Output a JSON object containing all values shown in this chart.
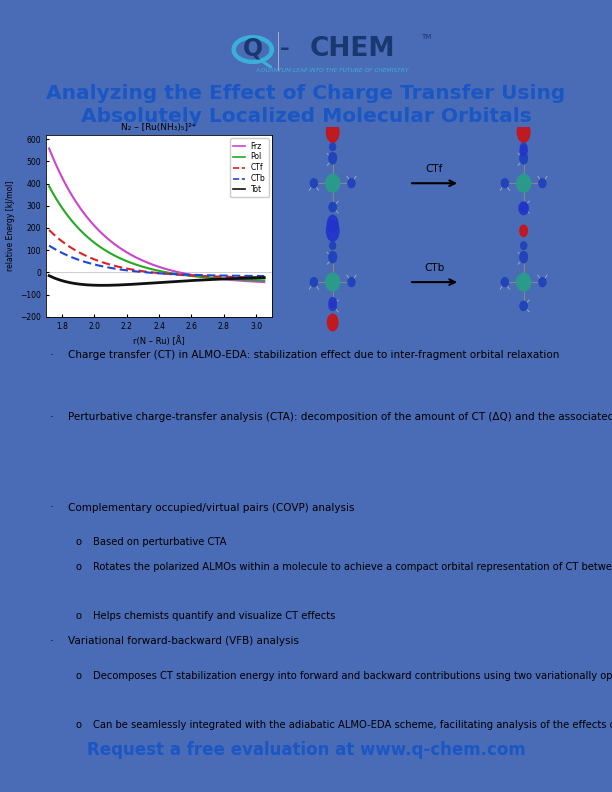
{
  "border_color": "#4a6bb5",
  "bg_color": "#ffffff",
  "title_line1": "Analyzing the Effect of Charge Transfer Using",
  "title_line2": "Absolutely Localized Molecular Orbitals",
  "title_color": "#1a56c4",
  "title_fontsize": 14.5,
  "tagline": "A QUANTUM LEAP INTO THE FUTURE OF CHEMISTRY",
  "plot_title": "N₂ – [Ru(NH₃)₅]²⁺",
  "plot_xlabel": "r(N – Ru) [Å]",
  "plot_ylabel": "relative Energy [kJ/mol]",
  "plot_xlim": [
    1.7,
    3.1
  ],
  "plot_ylim": [
    -200,
    620
  ],
  "plot_yticks": [
    -200,
    -100,
    0,
    100,
    200,
    300,
    400,
    500,
    600
  ],
  "plot_xticks": [
    1.8,
    2.0,
    2.2,
    2.4,
    2.6,
    2.8,
    3.0
  ],
  "legend_labels": [
    "Frz",
    "Pol",
    "CTf",
    "CTb",
    "Tot"
  ],
  "legend_colors": [
    "#cc44cc",
    "#22aa22",
    "#dd2222",
    "#2244dd",
    "#111111"
  ],
  "legend_styles": [
    "solid",
    "solid",
    "dashed",
    "dashed",
    "solid"
  ],
  "bullet_points": [
    {
      "text": "Charge transfer (CT) in ALMO-EDA: stabilization effect due to inter-fragment orbital relaxation",
      "sub": []
    },
    {
      "text": "Perturbative charge-transfer analysis (CTA): decomposition of the amount of CT (ΔQ) and the associated energetic stabilization (ΔE) into forward and backward contributions",
      "sub": []
    },
    {
      "text": "Complementary occupied/virtual pairs (COVP) analysis",
      "sub": [
        "Based on perturbative CTA",
        "Rotates the polarized ALMOs within a molecule to achieve a compact orbital representation of CT between a pair of molecules",
        "Helps chemists quantify and visualize CT effects"
      ]
    },
    {
      "text": "Variational forward-backward (VFB) analysis",
      "sub": [
        "Decomposes CT stabilization energy into forward and backward contributions using two variationally optimized “one-way” CT states",
        "Can be seamlessly integrated with the adiabatic ALMO-EDA scheme, facilitating analysis of the effects of forward and backward CT on molecular properties"
      ]
    }
  ],
  "footer_text": "Request a free evaluation at www.q-chem.com",
  "footer_color": "#1a56c4",
  "footer_fontsize": 12
}
